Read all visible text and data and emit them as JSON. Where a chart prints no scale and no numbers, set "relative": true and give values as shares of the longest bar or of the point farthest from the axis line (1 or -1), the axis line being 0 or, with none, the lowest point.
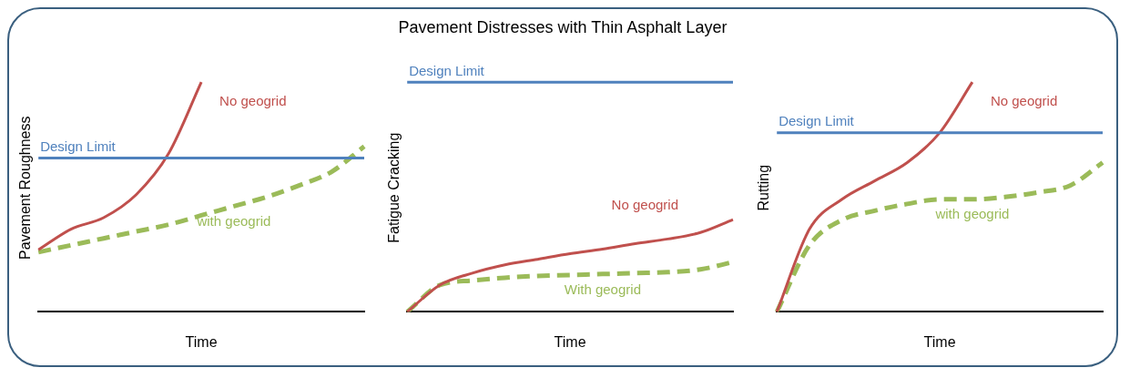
{
  "chart_data": [
    {
      "type": "line",
      "relative": true,
      "xlabel": "Time",
      "ylabel": "Pavement Roughness",
      "categories": [
        null,
        null,
        null,
        null,
        null,
        null,
        null,
        null,
        null,
        null,
        null
      ],
      "series": [
        {
          "name": "No geogrid",
          "color": "#c0504d",
          "line_style": "solid",
          "values": [
            0.27,
            0.36,
            0.41,
            0.51,
            0.69,
            1.0,
            null,
            null,
            null,
            null,
            null
          ]
        },
        {
          "name": "with geogrid",
          "color": "#9bbb59",
          "line_style": "dashed",
          "values": [
            0.26,
            0.29,
            0.32,
            0.35,
            0.38,
            0.42,
            0.46,
            0.5,
            0.55,
            0.61,
            0.72
          ]
        }
      ],
      "ref_lines": [
        {
          "axis": "y",
          "value": 0.67,
          "label": "Design Limit",
          "color": "#4f81bd"
        }
      ],
      "legend": false,
      "grid": false,
      "marker": "none"
    },
    {
      "type": "line",
      "title": "Pavement Distresses with Thin Asphalt Layer",
      "relative": true,
      "xlabel": "Time",
      "ylabel": "Fatigue Cracking",
      "categories": [
        null,
        null,
        null,
        null,
        null,
        null,
        null,
        null,
        null,
        null,
        null
      ],
      "series": [
        {
          "name": "No geogrid",
          "color": "#c0504d",
          "line_style": "solid",
          "values": [
            0,
            0.29,
            0.42,
            0.51,
            0.57,
            0.63,
            0.68,
            0.74,
            0.79,
            0.86,
            1.0
          ]
        },
        {
          "name": "With geogrid",
          "color": "#9bbb59",
          "line_style": "dashed",
          "values": [
            0,
            0.29,
            0.34,
            0.37,
            0.39,
            0.4,
            0.41,
            0.42,
            0.43,
            0.46,
            0.54
          ]
        }
      ],
      "ref_lines": [
        {
          "axis": "y",
          "value": 2.49,
          "label": "Design Limit",
          "color": "#4f81bd"
        }
      ],
      "legend": false,
      "grid": false,
      "marker": "none"
    },
    {
      "type": "line",
      "relative": true,
      "xlabel": "Time",
      "ylabel": "Rutting",
      "categories": [
        null,
        null,
        null,
        null,
        null,
        null,
        null,
        null,
        null,
        null,
        null
      ],
      "series": [
        {
          "name": "No geogrid",
          "color": "#c0504d",
          "line_style": "solid",
          "values": [
            0,
            0.36,
            0.49,
            0.57,
            0.65,
            0.78,
            1.0,
            null,
            null,
            null,
            null
          ]
        },
        {
          "name": "with geogrid",
          "color": "#9bbb59",
          "line_style": "dashed",
          "values": [
            0,
            0.29,
            0.4,
            0.44,
            0.47,
            0.49,
            0.49,
            0.5,
            0.52,
            0.55,
            0.65
          ]
        }
      ],
      "ref_lines": [
        {
          "axis": "y",
          "value": 0.78,
          "label": "Design Limit",
          "color": "#4f81bd"
        }
      ],
      "legend": false,
      "grid": false,
      "marker": "none"
    }
  ]
}
